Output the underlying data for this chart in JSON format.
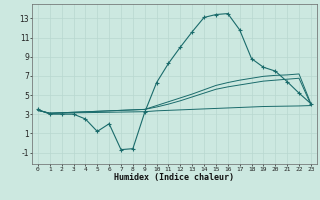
{
  "x": [
    0,
    1,
    2,
    3,
    4,
    5,
    6,
    7,
    8,
    9,
    10,
    11,
    12,
    13,
    14,
    15,
    16,
    17,
    18,
    19,
    20,
    21,
    22,
    23
  ],
  "main_line": [
    3.5,
    3.0,
    3.0,
    3.0,
    2.5,
    1.2,
    2.0,
    -0.7,
    -0.6,
    3.2,
    6.3,
    8.3,
    10.0,
    11.6,
    13.1,
    13.4,
    13.5,
    11.8,
    8.8,
    7.9,
    7.5,
    6.4,
    5.2,
    4.1
  ],
  "line2": [
    3.4,
    3.1,
    3.15,
    3.2,
    3.25,
    3.3,
    3.35,
    3.4,
    3.45,
    3.5,
    3.9,
    4.3,
    4.7,
    5.1,
    5.55,
    6.0,
    6.3,
    6.55,
    6.75,
    6.95,
    7.05,
    7.1,
    7.2,
    4.1
  ],
  "line3": [
    3.4,
    3.1,
    3.15,
    3.2,
    3.25,
    3.3,
    3.35,
    3.4,
    3.45,
    3.5,
    3.75,
    4.05,
    4.4,
    4.8,
    5.2,
    5.6,
    5.85,
    6.05,
    6.25,
    6.45,
    6.55,
    6.65,
    6.75,
    4.0
  ],
  "line4": [
    3.4,
    3.1,
    3.12,
    3.14,
    3.16,
    3.18,
    3.2,
    3.22,
    3.24,
    3.26,
    3.35,
    3.4,
    3.45,
    3.5,
    3.55,
    3.6,
    3.65,
    3.7,
    3.75,
    3.8,
    3.82,
    3.84,
    3.86,
    3.9
  ],
  "bg_color": "#cce8e0",
  "line_color": "#1a6b6b",
  "xlabel": "Humidex (Indice chaleur)",
  "yticks": [
    -1,
    1,
    3,
    5,
    7,
    9,
    11,
    13
  ],
  "xtick_labels": [
    "0",
    "1",
    "2",
    "3",
    "4",
    "5",
    "6",
    "7",
    "8",
    "9",
    "10",
    "11",
    "12",
    "13",
    "14",
    "15",
    "16",
    "17",
    "18",
    "19",
    "20",
    "21",
    "22",
    "23"
  ],
  "ylim": [
    -2.2,
    14.5
  ],
  "xlim": [
    -0.5,
    23.5
  ]
}
